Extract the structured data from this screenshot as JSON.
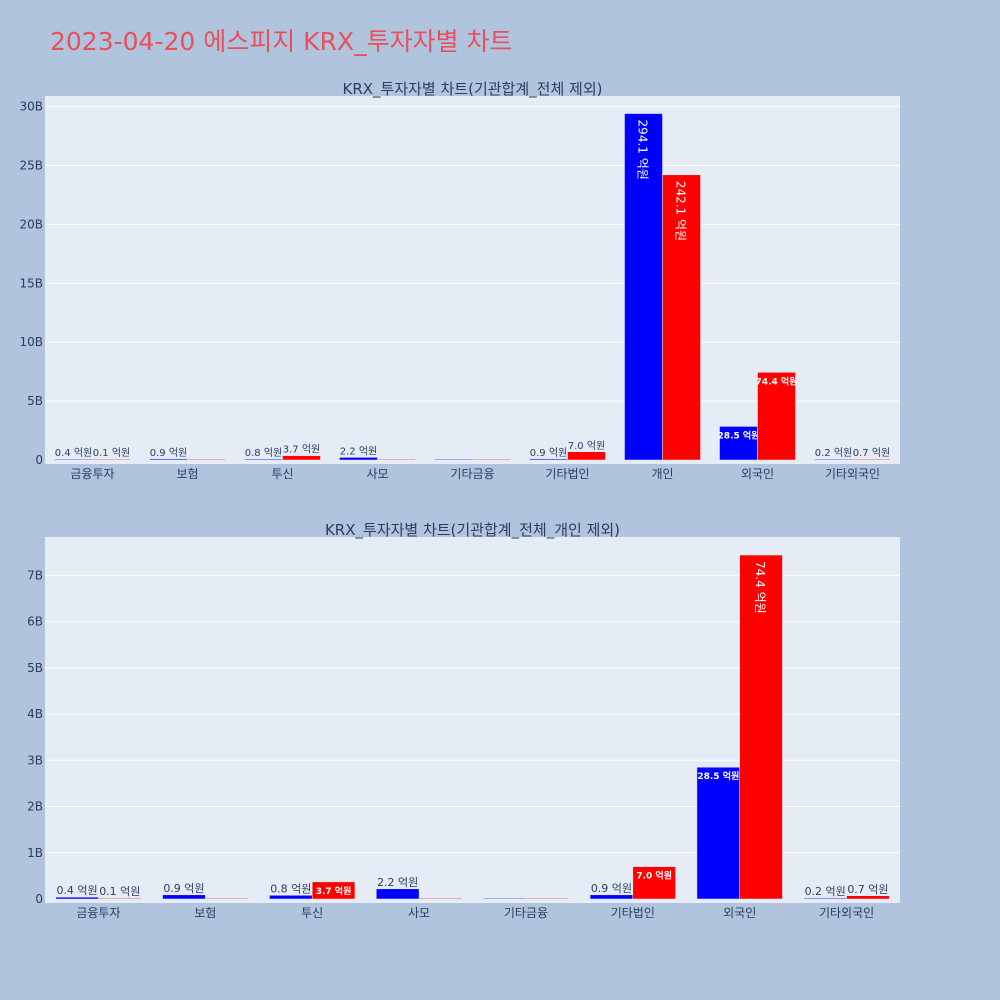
{
  "page_title": "2023-04-20 에스피지 KRX_투자자별 차트",
  "colors": {
    "buy": "#0000ff",
    "sell": "#ff0000",
    "plot_bg": "#e5ecf6",
    "paper_bg": "#b0c4de",
    "title": "#e8505b"
  },
  "chart_data": [
    {
      "type": "bar",
      "title": "KRX_투자자별 차트(기관합계_전체 제외)",
      "categories": [
        "금융투자",
        "보험",
        "투신",
        "사모",
        "기타금융",
        "기타법인",
        "개인",
        "외국인",
        "기타외국인"
      ],
      "series": [
        {
          "values": [
            40000000,
            90000000,
            80000000,
            220000000,
            0,
            90000000,
            29410000000,
            2850000000,
            20000000
          ],
          "labels": [
            "0.4 억원",
            "0.9 억원",
            "0.8 억원",
            "2.2 억원",
            "",
            "0.9 억원",
            "294.1 억원",
            "28.5 억원",
            "0.2 억원"
          ]
        },
        {
          "values": [
            10000000,
            0,
            370000000,
            0,
            0,
            700000000,
            24210000000,
            7440000000,
            70000000
          ],
          "labels": [
            "0.1 억원",
            "",
            "3.7 억원",
            "",
            "",
            "7.0 억원",
            "242.1 억원",
            "74.4 억원",
            "0.7 억원"
          ]
        }
      ],
      "yticks": [
        0,
        5000000000,
        10000000000,
        15000000000,
        20000000000,
        25000000000,
        30000000000
      ],
      "ytick_labels": [
        "0",
        "5B",
        "10B",
        "15B",
        "20B",
        "25B",
        "30B"
      ],
      "ylim": [
        0,
        30900000000
      ],
      "grid": true
    },
    {
      "type": "bar",
      "title": "KRX_투자자별 차트(기관합계_전체_개인 제외)",
      "categories": [
        "금융투자",
        "보험",
        "투신",
        "사모",
        "기타금융",
        "기타법인",
        "외국인",
        "기타외국인"
      ],
      "series": [
        {
          "values": [
            40000000,
            90000000,
            80000000,
            220000000,
            0,
            90000000,
            2850000000,
            20000000
          ],
          "labels": [
            "0.4 억원",
            "0.9 억원",
            "0.8 억원",
            "2.2 억원",
            "",
            "0.9 억원",
            "28.5 억원",
            "0.2 억원"
          ]
        },
        {
          "values": [
            10000000,
            0,
            370000000,
            0,
            0,
            700000000,
            7440000000,
            70000000
          ],
          "labels": [
            "0.1 억원",
            "",
            "3.7 억원",
            "",
            "",
            "7.0 억원",
            "74.4 억원",
            "0.7 억원"
          ]
        }
      ],
      "yticks": [
        0,
        1000000000,
        2000000000,
        3000000000,
        4000000000,
        5000000000,
        6000000000,
        7000000000
      ],
      "ytick_labels": [
        "0",
        "1B",
        "2B",
        "3B",
        "4B",
        "5B",
        "6B",
        "7B"
      ],
      "ylim": [
        0,
        7830000000
      ],
      "grid": true
    }
  ]
}
